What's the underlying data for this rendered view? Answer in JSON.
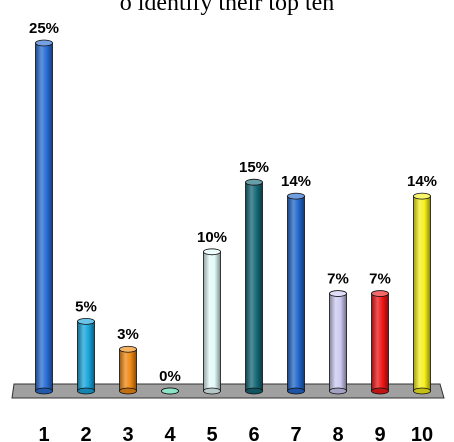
{
  "title_fragment": "o identify their top ten",
  "chart_data": {
    "type": "bar",
    "title": "",
    "categories": [
      "1",
      "2",
      "3",
      "4",
      "5",
      "6",
      "7",
      "8",
      "9",
      "10"
    ],
    "values": [
      25,
      5,
      3,
      0,
      10,
      15,
      14,
      7,
      7,
      14
    ],
    "value_labels": [
      "25%",
      "5%",
      "3%",
      "0%",
      "10%",
      "15%",
      "14%",
      "7%",
      "7%",
      "14%"
    ],
    "colors": [
      "#2b6fd6",
      "#1aa6dc",
      "#f08a14",
      "#4fd6a8",
      "#e4fafa",
      "#176a78",
      "#2468cc",
      "#cdcaf2",
      "#f01818",
      "#f5f01e"
    ],
    "floor_color": "#a0a0a0",
    "ylim": [
      0,
      25
    ],
    "xlabel": "",
    "ylabel": "",
    "grid": false,
    "legend": "none"
  }
}
